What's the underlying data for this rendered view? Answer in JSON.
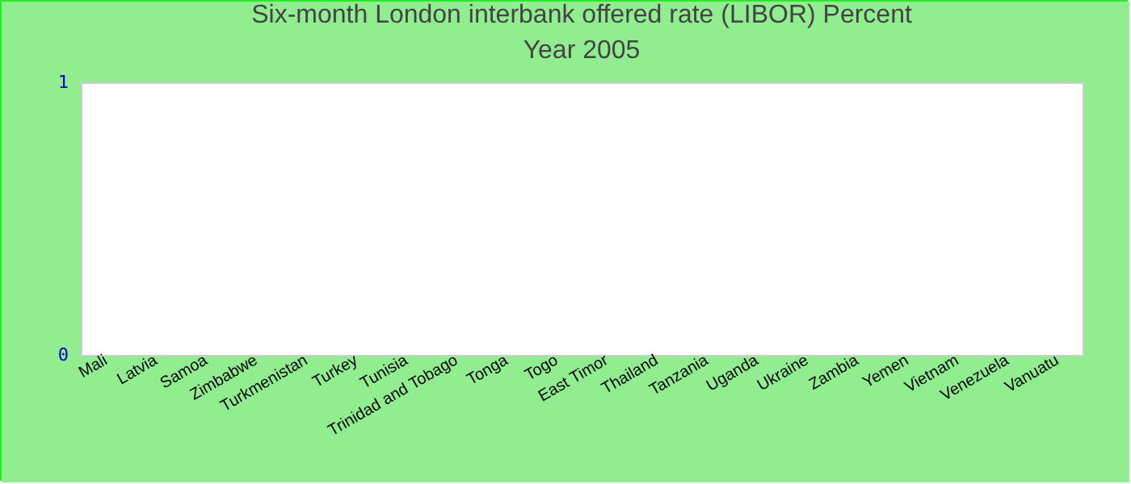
{
  "chart_data": {
    "type": "bar",
    "title": "Six-month London interbank offered rate (LIBOR)  Percent",
    "subtitle": "Year 2005",
    "categories": [
      "Mali",
      "Latvia",
      "Samoa",
      "Zimbabwe",
      "Turkmenistan",
      "Turkey",
      "Tunisia",
      "Trinidad and Tobago",
      "Tonga",
      "Togo",
      "East Timor",
      "Thailand",
      "Tanzania",
      "Uganda",
      "Ukraine",
      "Zambia",
      "Yemen",
      "Vietnam",
      "Venezuela",
      "Vanuatu"
    ],
    "values": [
      null,
      null,
      null,
      null,
      null,
      null,
      null,
      null,
      null,
      null,
      null,
      null,
      null,
      null,
      null,
      null,
      null,
      null,
      null,
      null
    ],
    "ylim": [
      0,
      1
    ],
    "yticks": [
      0,
      1
    ],
    "grid": false
  }
}
